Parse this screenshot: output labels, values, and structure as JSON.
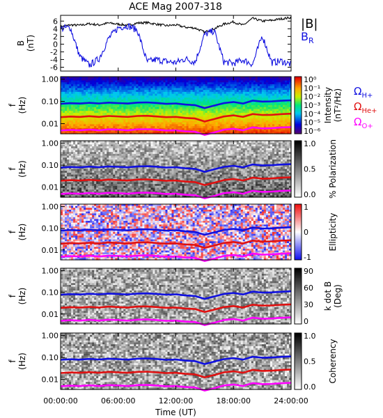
{
  "title": "ACE Mag 2007-318",
  "colors": {
    "h": "#1010e0",
    "he": "#e01010",
    "o": "#ff00ff",
    "black": "#000000"
  },
  "chart_data": [
    {
      "type": "line",
      "panel": "B",
      "ylabel": [
        "B",
        "(nT)"
      ],
      "yticks": [
        "6",
        "4",
        "2",
        "0",
        "-2",
        "-4",
        "-6"
      ],
      "ylim": [
        -7,
        7.5
      ],
      "series": [
        {
          "name": "|B|",
          "color": "#000000",
          "y": [
            4.5,
            5.0,
            4.9,
            5.3,
            5.0,
            5.5,
            5.2,
            4.9,
            5.5,
            5.6,
            5.2,
            4.8,
            5.0,
            4.4,
            4.2,
            3.1,
            4.0,
            5.2,
            5.8,
            4.9,
            6.7,
            6.0,
            6.2,
            6.6,
            6.9
          ]
        },
        {
          "name": "BR",
          "label": "B",
          "subscript": "R",
          "color": "#1010e0",
          "y": [
            4.0,
            4.4,
            -3.2,
            -5.5,
            -3.8,
            1.5,
            4.3,
            4.8,
            3.6,
            -4.6,
            -4.0,
            -4.5,
            -4.8,
            -3.8,
            -4.7,
            2.5,
            3.5,
            -4.6,
            -5.0,
            -4.1,
            -5.2,
            2.2,
            -4.8,
            -4.4,
            -5.3
          ]
        }
      ]
    },
    {
      "type": "heatmap",
      "panel": "power",
      "ylabel": [
        "f",
        "(Hz)"
      ],
      "yticks": [
        "1.00",
        "0.10",
        "0.01"
      ],
      "colorbar_label": [
        "Intensity",
        "(nT²/Hz)"
      ],
      "colorbar_ticks": [
        "10⁰",
        "10⁻¹",
        "10⁻²",
        "10⁻³",
        "10⁻⁴",
        "10⁻⁵",
        "10⁻⁶"
      ],
      "legend": [
        {
          "label": "Ω",
          "subscript": "H+",
          "color": "#1010e0"
        },
        {
          "label": "Ω",
          "subscript": "He+",
          "color": "#e01010"
        },
        {
          "label": "Ω",
          "subscript": "O+",
          "color": "#ff00ff"
        }
      ]
    },
    {
      "type": "heatmap",
      "panel": "polarization",
      "ylabel": [
        "f",
        "(Hz)"
      ],
      "yticks": [
        "1.00",
        "0.10",
        "0.01"
      ],
      "colorbar_label": [
        "% Polarization"
      ],
      "colorbar_ticks": [
        "1.0",
        "0.5",
        "0.0"
      ]
    },
    {
      "type": "heatmap",
      "panel": "ellipticity",
      "ylabel": [
        "f",
        "(Hz)"
      ],
      "yticks": [
        "1.00",
        "0.10",
        "0.01"
      ],
      "colorbar_label": [
        "Ellipticity"
      ],
      "colorbar_ticks": [
        "1",
        "0",
        "-1"
      ]
    },
    {
      "type": "heatmap",
      "panel": "kdotb",
      "ylabel": [
        "f",
        "(Hz)"
      ],
      "yticks": [
        "1.00",
        "0.10",
        "0.01"
      ],
      "colorbar_label": [
        "k dot B",
        "(Deg)"
      ],
      "colorbar_ticks": [
        "90",
        "60",
        "30",
        "0"
      ]
    },
    {
      "type": "heatmap",
      "panel": "coherency",
      "ylabel": [
        "f",
        "(Hz)"
      ],
      "yticks": [
        "1.00",
        "0.10",
        "0.01"
      ],
      "colorbar_label": [
        "Coherency"
      ],
      "colorbar_ticks": [
        "1.0",
        "0.5",
        "0.0"
      ]
    }
  ],
  "gyrofrequency_hz": {
    "h": [
      0.078,
      0.083,
      0.08,
      0.086,
      0.081,
      0.088,
      0.084,
      0.08,
      0.088,
      0.09,
      0.085,
      0.078,
      0.081,
      0.072,
      0.068,
      0.05,
      0.065,
      0.084,
      0.094,
      0.08,
      0.108,
      0.098,
      0.1,
      0.107,
      0.112
    ],
    "he": [
      0.0195,
      0.0208,
      0.02,
      0.0215,
      0.02,
      0.022,
      0.021,
      0.02,
      0.022,
      0.0225,
      0.021,
      0.0195,
      0.02,
      0.018,
      0.017,
      0.0125,
      0.016,
      0.021,
      0.0235,
      0.02,
      0.027,
      0.0245,
      0.025,
      0.0268,
      0.028
    ],
    "o": [
      0.0049,
      0.0052,
      0.005,
      0.0054,
      0.005,
      0.0055,
      0.0053,
      0.005,
      0.0055,
      0.0056,
      0.0053,
      0.0049,
      0.005,
      0.0045,
      0.0043,
      0.0031,
      0.004,
      0.0053,
      0.0059,
      0.005,
      0.0068,
      0.0061,
      0.0063,
      0.0067,
      0.007
    ]
  },
  "xaxis": {
    "label": "Time (UT)",
    "ticks": [
      "00:00:00",
      "06:00:00",
      "12:00:00",
      "18:00:00",
      "24:00:00"
    ]
  }
}
